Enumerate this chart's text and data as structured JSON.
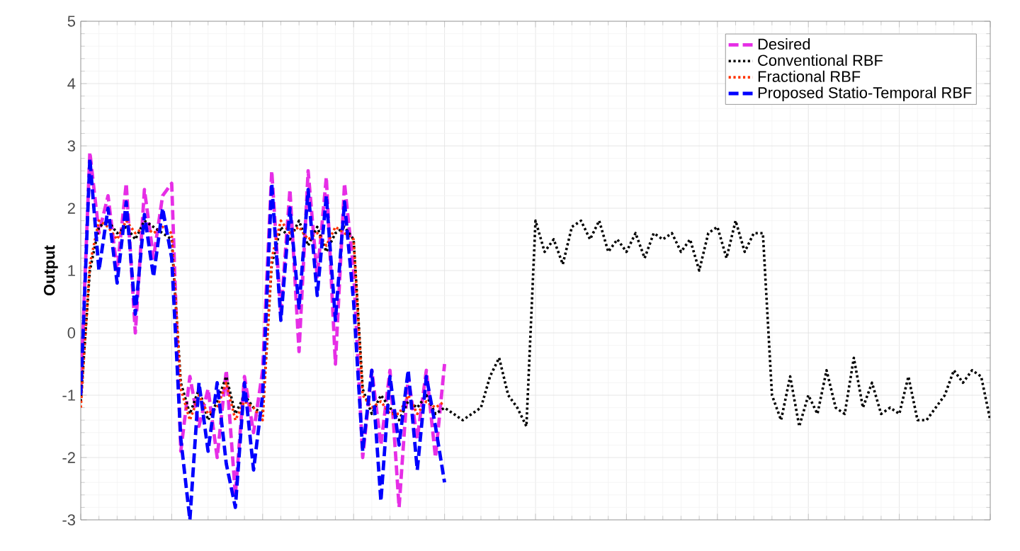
{
  "chart_data": {
    "type": "line",
    "ylabel": "Output",
    "categories": [
      null,
      null,
      null,
      null,
      null,
      null,
      null,
      null,
      null,
      null,
      null,
      null,
      null,
      null,
      null,
      null,
      null,
      null,
      null,
      null,
      null,
      null,
      null,
      null,
      null,
      null,
      null,
      null,
      null,
      null,
      null,
      null,
      null,
      null,
      null,
      null,
      null,
      null,
      null,
      null,
      null,
      null,
      null,
      null,
      null,
      null,
      null,
      null,
      null,
      null,
      null,
      null,
      null,
      null,
      null,
      null,
      null,
      null,
      null,
      null,
      null,
      null,
      null,
      null,
      null,
      null,
      null,
      null,
      null,
      null,
      null,
      null,
      null,
      null,
      null,
      null,
      null,
      null,
      null,
      null,
      null,
      null,
      null,
      null,
      null,
      null,
      null,
      null,
      null,
      null,
      null,
      null,
      null,
      null,
      null,
      null,
      null,
      null,
      null,
      null,
      null
    ],
    "series": [
      {
        "name": "Desired",
        "color": "#e62ee6",
        "line_style": "dashed",
        "values": [
          -0.9,
          2.9,
          1.6,
          2.2,
          1.0,
          2.4,
          0.0,
          2.3,
          1.2,
          2.2,
          2.4,
          -1.9,
          -0.7,
          -1.5,
          -0.9,
          -2.0,
          -0.6,
          -2.6,
          -0.7,
          -1.6,
          -0.6,
          2.6,
          0.3,
          2.3,
          -0.3,
          2.6,
          0.9,
          2.5,
          -0.5,
          2.4,
          1.0,
          -2.0,
          -0.6,
          -1.8,
          -0.6,
          -2.8,
          -0.7,
          -1.7,
          -0.6,
          -2.0,
          -0.5,
          null,
          null,
          null,
          null,
          null,
          null,
          null,
          null,
          null,
          null,
          null,
          null,
          null,
          null,
          null,
          null,
          null,
          null,
          null,
          null,
          null,
          null,
          null,
          null,
          null,
          null,
          null,
          null,
          null,
          null,
          null,
          null,
          null,
          null,
          null,
          null,
          null,
          null,
          null,
          null,
          null,
          null,
          null,
          null,
          null,
          null,
          null,
          null,
          null,
          null,
          null,
          null,
          null,
          null,
          null,
          null,
          null,
          null,
          null,
          null
        ]
      },
      {
        "name": "Conventional RBF",
        "color": "#000000",
        "line_style": "dotted",
        "values": [
          -1.1,
          1.0,
          1.7,
          1.8,
          1.6,
          1.7,
          1.5,
          1.8,
          1.7,
          1.6,
          1.5,
          -0.8,
          -1.3,
          -0.9,
          -1.4,
          -1.1,
          -0.7,
          -1.3,
          -1.0,
          -1.2,
          -1.3,
          1.1,
          1.7,
          1.5,
          1.8,
          1.4,
          1.7,
          1.3,
          1.6,
          1.7,
          1.5,
          -0.9,
          -1.3,
          -1.0,
          -1.2,
          -1.4,
          -1.1,
          -1.2,
          -1.0,
          -1.3,
          -1.2,
          -1.3,
          -1.4,
          -1.3,
          -1.2,
          -0.7,
          -0.4,
          -1.0,
          -1.2,
          -1.5,
          1.8,
          1.3,
          1.5,
          1.1,
          1.7,
          1.8,
          1.5,
          1.8,
          1.3,
          1.5,
          1.3,
          1.6,
          1.2,
          1.6,
          1.5,
          1.6,
          1.3,
          1.5,
          1.0,
          1.6,
          1.7,
          1.2,
          1.8,
          1.3,
          1.6,
          1.6,
          -1.0,
          -1.4,
          -0.7,
          -1.5,
          -1.0,
          -1.3,
          -0.6,
          -1.2,
          -1.3,
          -0.4,
          -1.2,
          -0.8,
          -1.3,
          -1.2,
          -1.3,
          -0.7,
          -1.4,
          -1.4,
          -1.2,
          -1.0,
          -0.6,
          -0.8,
          -0.6,
          -0.7,
          -1.4
        ]
      },
      {
        "name": "Fractional RBF",
        "color": "#ff3300",
        "line_style": "dotted",
        "values": [
          -1.2,
          1.1,
          1.8,
          1.7,
          1.5,
          1.8,
          1.6,
          1.7,
          1.6,
          1.7,
          1.6,
          -0.9,
          -1.4,
          -1.0,
          -1.3,
          -1.2,
          -0.8,
          -1.4,
          -1.1,
          -1.2,
          -1.4,
          1.2,
          1.8,
          1.6,
          1.7,
          1.5,
          1.6,
          1.4,
          1.7,
          1.6,
          1.5,
          -1.0,
          -1.2,
          -1.1,
          -1.3,
          -1.3,
          -1.0,
          -1.3,
          -1.1,
          -1.2,
          -1.1,
          null,
          null,
          null,
          null,
          null,
          null,
          null,
          null,
          null,
          null,
          null,
          null,
          null,
          null,
          null,
          null,
          null,
          null,
          null,
          null,
          null,
          null,
          null,
          null,
          null,
          null,
          null,
          null,
          null,
          null,
          null,
          null,
          null,
          null,
          null,
          null,
          null,
          null,
          null,
          null,
          null,
          null,
          null,
          null,
          null,
          null,
          null,
          null,
          null,
          null,
          null,
          null,
          null,
          null,
          null,
          null,
          null,
          null,
          null,
          null
        ]
      },
      {
        "name": "Proposed Statio-Temporal RBF",
        "color": "#0000ff",
        "line_style": "dashed",
        "values": [
          -1.0,
          2.8,
          1.0,
          2.0,
          0.8,
          2.1,
          0.3,
          1.9,
          0.9,
          2.0,
          1.2,
          -1.7,
          -3.0,
          -0.8,
          -1.9,
          -0.8,
          -2.1,
          -2.8,
          -0.8,
          -2.2,
          -1.0,
          2.4,
          0.2,
          2.0,
          0.4,
          2.3,
          0.6,
          2.2,
          0.2,
          2.1,
          0.5,
          -1.9,
          -0.6,
          -2.7,
          -0.7,
          -1.8,
          -0.6,
          -2.2,
          -0.7,
          -1.5,
          -2.4,
          null,
          null,
          null,
          null,
          null,
          null,
          null,
          null,
          null,
          null,
          null,
          null,
          null,
          null,
          null,
          null,
          null,
          null,
          null,
          null,
          null,
          null,
          null,
          null,
          null,
          null,
          null,
          null,
          null,
          null,
          null,
          null,
          null,
          null,
          null,
          null,
          null,
          null,
          null,
          null,
          null,
          null,
          null,
          null,
          null,
          null,
          null,
          null,
          null,
          null,
          null,
          null,
          null,
          null,
          null,
          null,
          null,
          null,
          null,
          null
        ]
      }
    ],
    "ylim": [
      -3,
      5
    ],
    "yticks": [
      -3,
      -2,
      -1,
      0,
      1,
      2,
      3,
      4,
      5
    ],
    "grid": true,
    "legend": "top right",
    "tick_labels": "y"
  }
}
